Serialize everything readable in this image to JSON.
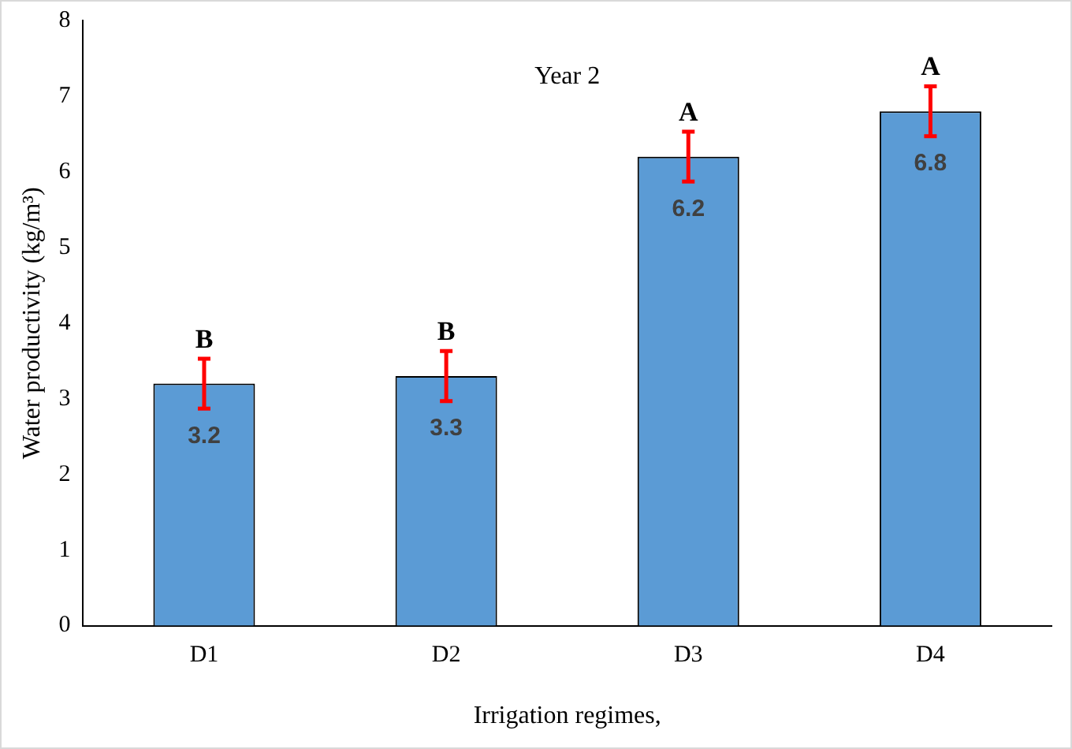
{
  "chart_data": {
    "type": "bar",
    "title": "Year 2",
    "xlabel": "Irrigation regimes,",
    "ylabel": "Water productivity (kg/m³)",
    "categories": [
      "D1",
      "D2",
      "D3",
      "D4"
    ],
    "values": [
      3.2,
      3.3,
      6.2,
      6.8
    ],
    "errors": [
      0.33,
      0.33,
      0.33,
      0.33
    ],
    "color": "#5b9bd5",
    "data_labels": true,
    "ylim": [
      0,
      8
    ],
    "yticks": [
      0,
      1,
      2,
      3,
      4,
      5,
      6,
      7,
      8
    ],
    "grid": false,
    "legend": false,
    "annotations": [
      "B",
      "B",
      "A",
      "A"
    ]
  }
}
